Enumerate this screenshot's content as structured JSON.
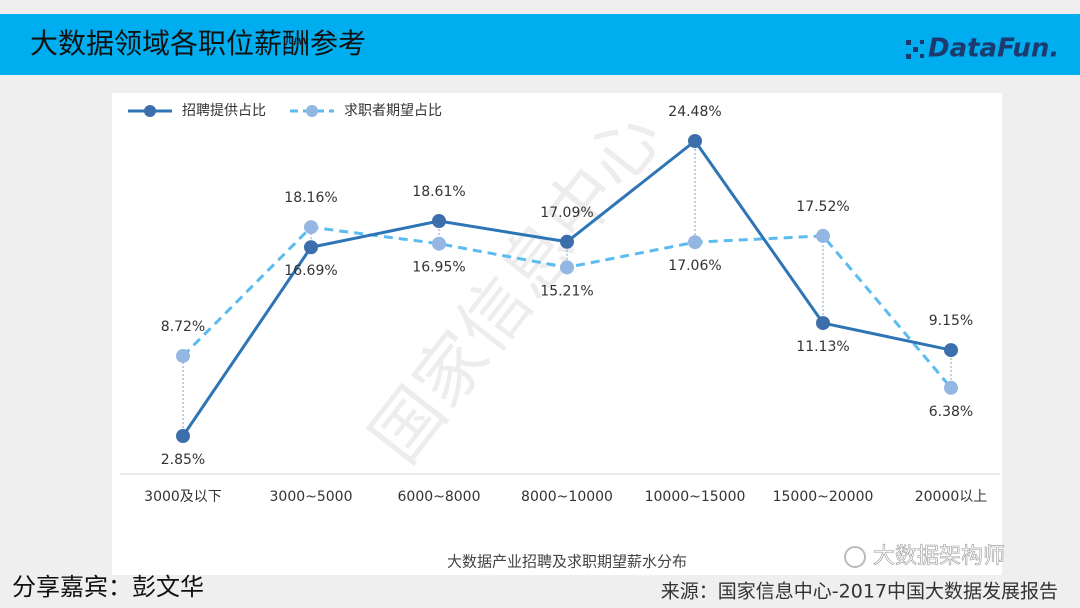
{
  "header": {
    "title": "大数据领域各职位薪酬参考",
    "logo": "DataFun."
  },
  "chart_data": {
    "type": "line",
    "xlabel": "大数据产业招聘及求职期望薪水分布",
    "categories": [
      "3000及以下",
      "3000~5000",
      "6000~8000",
      "8000~10000",
      "10000~15000",
      "15000~20000",
      "20000以上"
    ],
    "series": [
      {
        "name": "招聘提供占比",
        "color": "#2e75b6",
        "marker_color": "#3b6eaa",
        "dashed": false,
        "values": [
          2.85,
          16.69,
          18.61,
          17.09,
          24.48,
          11.13,
          9.15
        ],
        "value_labels": [
          "2.85%",
          "16.69%",
          "18.61%",
          "17.09%",
          "24.48%",
          "11.13%",
          "9.15%"
        ]
      },
      {
        "name": "求职者期望占比",
        "color": "#5cbcef",
        "marker_color": "#94b6e2",
        "dashed": true,
        "values": [
          8.72,
          18.16,
          16.95,
          15.21,
          17.06,
          17.52,
          6.38
        ],
        "value_labels": [
          "8.72%",
          "18.16%",
          "16.95%",
          "15.21%",
          "17.06%",
          "17.52%",
          "6.38%"
        ]
      }
    ],
    "legend": "top-left"
  },
  "watermark": "国家信息中心",
  "footer": {
    "speaker": "分享嘉宾：彭文华",
    "source": "来源：国家信息中心-2017中国大数据发展报告",
    "account": "大数据架构师"
  }
}
